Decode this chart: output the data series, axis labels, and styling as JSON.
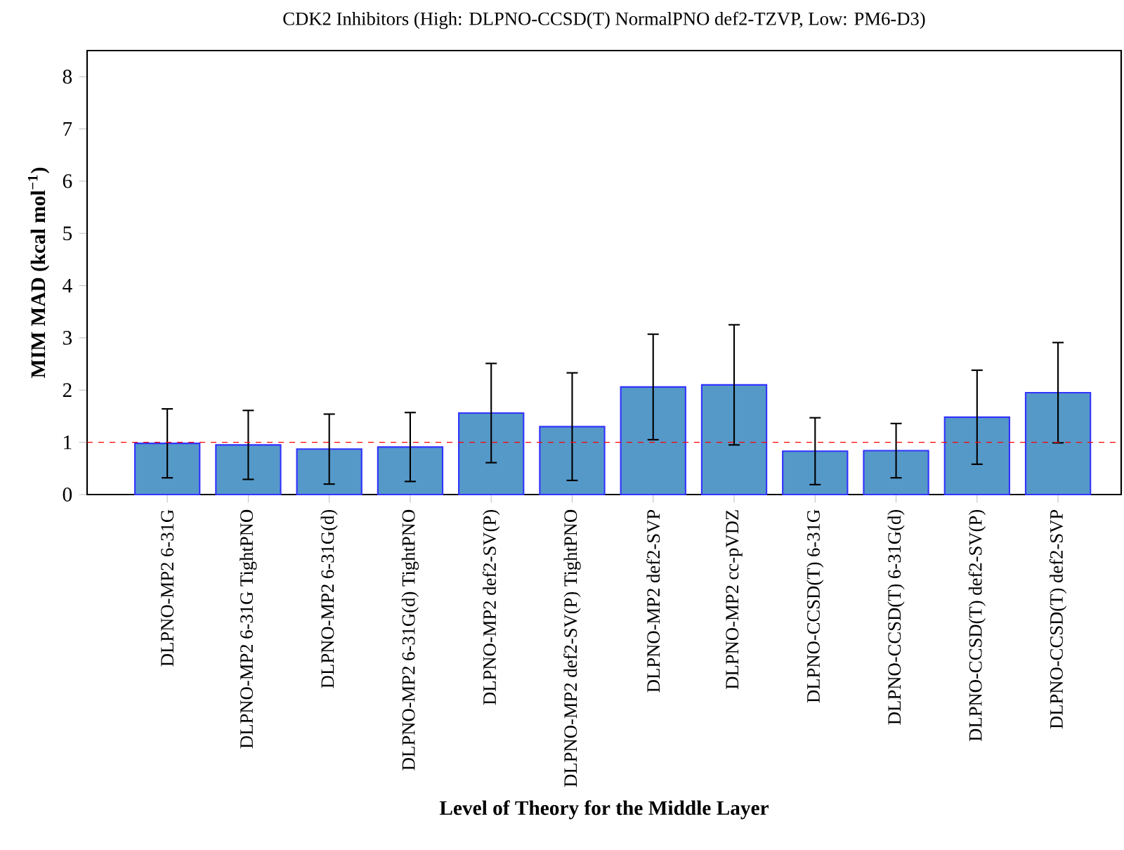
{
  "chart_data": {
    "type": "bar",
    "title": "CDK2 Inhibitors (High: DLPNO-CCSD(T) NormalPNO def2-TZVP, Low: PM6-D3)",
    "xlabel": "Level of Theory for the Middle Layer",
    "ylabel": "MIM MAD (kcal mol$^{−1}$)",
    "categories": [
      "DLPNO-MP2 6-31G",
      "DLPNO-MP2 6-31G TightPNO",
      "DLPNO-MP2 6-31G(d)",
      "DLPNO-MP2 6-31G(d) TightPNO",
      "DLPNO-MP2 def2-SV(P)",
      "DLPNO-MP2 def2-SV(P) TightPNO",
      "DLPNO-MP2 def2-SVP",
      "DLPNO-MP2 cc-pVDZ",
      "DLPNO-CCSD(T) 6-31G",
      "DLPNO-CCSD(T) 6-31G(d)",
      "DLPNO-CCSD(T) def2-SV(P)",
      "DLPNO-CCSD(T) def2-SVP"
    ],
    "values": [
      0.98,
      0.95,
      0.87,
      0.91,
      1.56,
      1.3,
      2.06,
      2.1,
      0.83,
      0.84,
      1.48,
      1.95
    ],
    "errors": [
      0.66,
      0.66,
      0.67,
      0.66,
      0.95,
      1.03,
      1.01,
      1.15,
      0.64,
      0.52,
      0.9,
      0.96
    ],
    "color": "#5599c8",
    "ylim": [
      0,
      8.5
    ],
    "yticks": [
      0,
      1,
      2,
      3,
      4,
      5,
      6,
      7,
      8
    ],
    "ref_lines": [
      {
        "axis": "y",
        "value": 1,
        "color": "#ff0000",
        "line_style": "dashed"
      }
    ]
  }
}
